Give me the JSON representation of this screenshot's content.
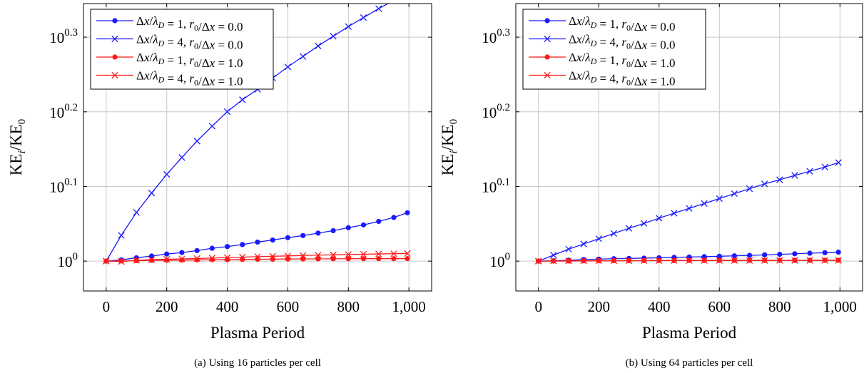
{
  "colors": {
    "blue": "#1a1aff",
    "red": "#ff1a1a"
  },
  "legend_entries": [
    {
      "text": "Δx/λ_D = 1, r₀/Δx = 0.0",
      "color": "#1a1aff",
      "marker": "dot"
    },
    {
      "text": "Δx/λ_D = 4, r₀/Δx = 0.0",
      "color": "#1a1aff",
      "marker": "cross"
    },
    {
      "text": "Δx/λ_D = 1, r₀/Δx = 1.0",
      "color": "#ff1a1a",
      "marker": "dot"
    },
    {
      "text": "Δx/λ_D = 4, r₀/Δx = 1.0",
      "color": "#ff1a1a",
      "marker": "cross"
    }
  ],
  "chart_data": [
    {
      "type": "line",
      "caption": "(a) Using 16 particles per cell",
      "xlabel": "Plasma Period",
      "ylabel": "KE_i/KE_0",
      "y_scale": "log10",
      "xlim": [
        -75,
        1075
      ],
      "ylim_exponent": [
        -0.04,
        0.345
      ],
      "x_ticks": [
        "0",
        "200",
        "400",
        "600",
        "800",
        "1,000"
      ],
      "y_ticks": [
        "10^0",
        "10^0.1",
        "10^0.2",
        "10^0.3"
      ],
      "grid": true,
      "legend_position": "top-left",
      "x": [
        0,
        50,
        100,
        150,
        200,
        250,
        300,
        350,
        400,
        450,
        500,
        550,
        600,
        650,
        700,
        750,
        800,
        850,
        900,
        950,
        995
      ],
      "series": [
        {
          "name": "Δx/λ_D = 1, r₀/Δx = 0.0",
          "color": "#1a1aff",
          "marker": "dot",
          "log10_values": [
            0,
            0.0016,
            0.0045,
            0.0068,
            0.0095,
            0.0115,
            0.0141,
            0.0172,
            0.0195,
            0.0222,
            0.0255,
            0.0283,
            0.0314,
            0.0342,
            0.0375,
            0.0408,
            0.0448,
            0.0485,
            0.0532,
            0.0585,
            0.0648
          ]
        },
        {
          "name": "Δx/λ_D = 4, r₀/Δx = 0.0",
          "color": "#1a1aff",
          "marker": "cross",
          "log10_values": [
            0,
            0.0345,
            0.0652,
            0.0912,
            0.1162,
            0.1388,
            0.1608,
            0.1808,
            0.2002,
            0.2162,
            0.2302,
            0.2452,
            0.2602,
            0.2742,
            0.2882,
            0.3012,
            0.3142,
            0.3262,
            0.3382,
            0.3492,
            0.3612
          ]
        },
        {
          "name": "Δx/λ_D = 1, r₀/Δx = 1.0",
          "color": "#ff1a1a",
          "marker": "dot",
          "log10_values": [
            0,
            0.0002,
            0.0006,
            0.001,
            0.0012,
            0.0014,
            0.0016,
            0.0019,
            0.002,
            0.0022,
            0.0024,
            0.0026,
            0.0028,
            0.0029,
            0.003,
            0.0031,
            0.0032,
            0.0033,
            0.0033,
            0.0033,
            0.0034
          ]
        },
        {
          "name": "Δx/λ_D = 4, r₀/Δx = 1.0",
          "color": "#ff1a1a",
          "marker": "cross",
          "log10_values": [
            0,
            -0.0005,
            0.001,
            0.002,
            0.0025,
            0.003,
            0.0035,
            0.0041,
            0.0048,
            0.0054,
            0.006,
            0.0065,
            0.007,
            0.0075,
            0.008,
            0.0084,
            0.0088,
            0.0092,
            0.0096,
            0.0099,
            0.0102
          ]
        }
      ]
    },
    {
      "type": "line",
      "caption": "(b) Using 64 particles per cell",
      "xlabel": "Plasma Period",
      "ylabel": "KE_i/KE_0",
      "y_scale": "log10",
      "xlim": [
        -75,
        1075
      ],
      "ylim_exponent": [
        -0.04,
        0.345
      ],
      "x_ticks": [
        "0",
        "200",
        "400",
        "600",
        "800",
        "1,000"
      ],
      "y_ticks": [
        "10^0",
        "10^0.1",
        "10^0.2",
        "10^0.3"
      ],
      "grid": true,
      "legend_position": "top-left",
      "x": [
        0,
        50,
        100,
        150,
        200,
        250,
        300,
        350,
        400,
        450,
        500,
        550,
        600,
        650,
        700,
        750,
        800,
        850,
        900,
        950,
        995
      ],
      "series": [
        {
          "name": "Δx/λ_D = 1, r₀/Δx = 0.0",
          "color": "#1a1aff",
          "marker": "dot",
          "log10_values": [
            0,
            0.0005,
            0.0012,
            0.002,
            0.0027,
            0.0032,
            0.0036,
            0.004,
            0.0045,
            0.005,
            0.0055,
            0.006,
            0.0065,
            0.0071,
            0.0077,
            0.0084,
            0.0091,
            0.0098,
            0.0106,
            0.0113,
            0.012
          ]
        },
        {
          "name": "Δx/λ_D = 4, r₀/Δx = 0.0",
          "color": "#1a1aff",
          "marker": "cross",
          "log10_values": [
            0,
            0.008,
            0.016,
            0.023,
            0.03,
            0.037,
            0.044,
            0.0505,
            0.0575,
            0.0642,
            0.0707,
            0.0772,
            0.0838,
            0.0904,
            0.097,
            0.1034,
            0.109,
            0.1148,
            0.1204,
            0.126,
            0.132
          ]
        },
        {
          "name": "Δx/λ_D = 1, r₀/Δx = 1.0",
          "color": "#ff1a1a",
          "marker": "dot",
          "log10_values": [
            0,
            0.0001,
            0.0002,
            0.0003,
            0.0004,
            0.0005,
            0.0006,
            0.0007,
            0.0008,
            0.0008,
            0.0009,
            0.0009,
            0.001,
            0.001,
            0.001,
            0.0011,
            0.0011,
            0.0011,
            0.0011,
            0.0012,
            0.0012
          ]
        },
        {
          "name": "Δx/λ_D = 4, r₀/Δx = 1.0",
          "color": "#ff1a1a",
          "marker": "cross",
          "log10_values": [
            0,
            0.0001,
            0.0002,
            0.0003,
            0.0004,
            0.0005,
            0.0005,
            0.0006,
            0.0006,
            0.0007,
            0.0007,
            0.0007,
            0.0008,
            0.0008,
            0.0008,
            0.0008,
            0.0009,
            0.0009,
            0.0009,
            0.0009,
            0.0009
          ]
        }
      ]
    }
  ]
}
